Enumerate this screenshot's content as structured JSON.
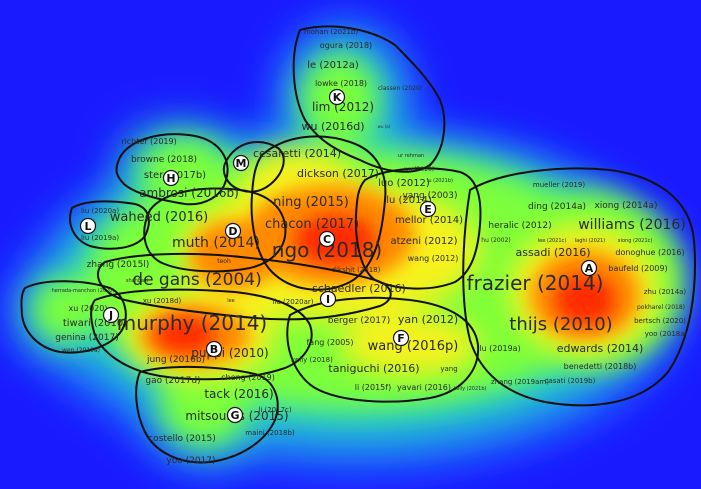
{
  "colors": {
    "background": "#1a1aff",
    "low": "#1f6bff",
    "mid_low": "#22d3c8",
    "mid": "#7cff3a",
    "mid_high": "#f7f21f",
    "high": "#ff8a00",
    "peak": "#ff2a00",
    "boundary": "#111111"
  },
  "clusters": [
    {
      "letter": "A",
      "name": "cluster-a"
    },
    {
      "letter": "B",
      "name": "cluster-b"
    },
    {
      "letter": "C",
      "name": "cluster-c"
    },
    {
      "letter": "D",
      "name": "cluster-d"
    },
    {
      "letter": "E",
      "name": "cluster-e"
    },
    {
      "letter": "F",
      "name": "cluster-f"
    },
    {
      "letter": "G",
      "name": "cluster-g"
    },
    {
      "letter": "H",
      "name": "cluster-h"
    },
    {
      "letter": "I",
      "name": "cluster-i"
    },
    {
      "letter": "J",
      "name": "cluster-j"
    },
    {
      "letter": "K",
      "name": "cluster-k"
    },
    {
      "letter": "L",
      "name": "cluster-l"
    },
    {
      "letter": "M",
      "name": "cluster-m"
    }
  ],
  "labels": [
    "mohan (2021b)",
    "ogura (2018)",
    "le (2012a)",
    "lowke (2018)",
    "classen (2020)",
    "lim (2012)",
    "wu (2016d)",
    "wu (a)",
    "ur rehman",
    "wu (2020)",
    "richter (2019)",
    "browne (2018)",
    "ster (2017b)",
    "ambrosi (2016b)",
    "cesaretti (2014)",
    "dickson (2017)",
    "lu (2021b)",
    "luo (2012)",
    "yang (2003)",
    "mueller (2019)",
    "ding (2014a)",
    "xiong (2014a)",
    "liu (2020a)",
    "liu (2019a)",
    "liu",
    "waheed (2016)",
    "ning (2015)",
    "lu (2014)",
    "mellor (2014)",
    "heralic (2012)",
    "williams (2016)",
    "chacon (2017)",
    "muth (2014)",
    "atzeni (2012)",
    "hu (2002)",
    "lee (2021c)",
    "laghi (2021)",
    "xiong (2021c)",
    "zhang (2015l)",
    "ngo (2018)",
    "wang (2012)",
    "assadi (2016)",
    "donoghue (2016)",
    "teoh",
    "baufeld (2009)",
    "dikshit (2018)",
    "de gans (2004)",
    "frazier (2014)",
    "shahbazi",
    "herrada-manchon (2020)",
    "xu (2018d)",
    "lee",
    "schaedler (2016)",
    "zhu (2014a)",
    "liu (2020ar)",
    "pokharel (2018)",
    "xu (2020)",
    "tiwari (2010)",
    "berger (2017)",
    "yan (2012)",
    "bertsch (2020)",
    "thijs (2010)",
    "genina (2017)",
    "murphy (2014)",
    "yoo (2018a)",
    "fang (2005)",
    "wang (2016p)",
    "wen (2019a)",
    "puppi (2010)",
    "lu (2019a)",
    "edwards (2014)",
    "kelly (2018)",
    "jung (2016b)",
    "taniguchi (2016)",
    "yang",
    "benedetti (2018b)",
    "gao (2017d)",
    "cheng (2019)",
    "zhang (2019am)",
    "casati (2019b)",
    "li (2015f)",
    "yavari (2016)",
    "kelly (2021b)",
    "tack (2016)",
    "li (2017c)",
    "mitsouras (2015)",
    "costello (2015)",
    "maini (2018b)",
    "yoo (2017)"
  ]
}
